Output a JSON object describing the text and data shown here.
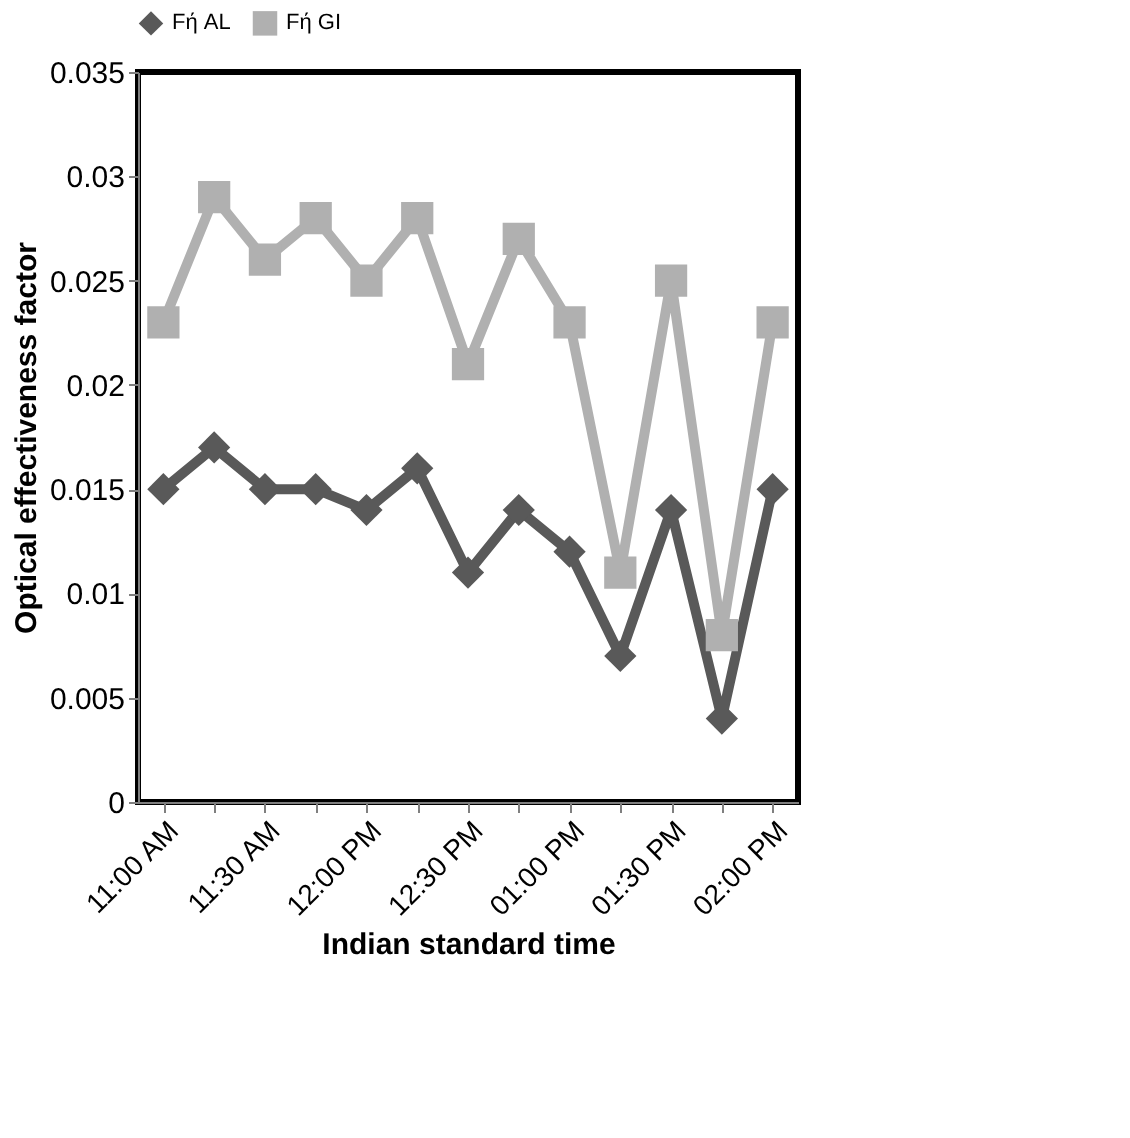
{
  "chart_data": {
    "type": "line",
    "xlabel": "Indian standard time",
    "ylabel": "Optical effectiveness factor",
    "categories": [
      "11:00 AM",
      null,
      "11:30 AM",
      null,
      "12:00 PM",
      null,
      "12:30 PM",
      null,
      "01:00 PM",
      null,
      "01:30 PM",
      null,
      "02:00 PM"
    ],
    "series": [
      {
        "name": "Fή AL",
        "color": "#595959",
        "marker": "diamond",
        "values": [
          0.015,
          0.017,
          0.015,
          0.015,
          0.014,
          0.016,
          0.011,
          0.014,
          0.012,
          0.007,
          0.014,
          0.004,
          0.015
        ]
      },
      {
        "name": "Fή GI",
        "color": "#b0b0b0",
        "marker": "square",
        "values": [
          0.023,
          0.029,
          0.026,
          0.028,
          0.025,
          0.028,
          0.021,
          0.027,
          0.023,
          0.011,
          0.025,
          0.008,
          0.023
        ]
      }
    ],
    "ylim": [
      0,
      0.035
    ],
    "yticks": [
      0,
      0.005,
      0.01,
      0.015,
      0.02,
      0.025,
      0.03,
      0.035
    ],
    "grid": false,
    "legend": "top",
    "line_style": "solid"
  }
}
